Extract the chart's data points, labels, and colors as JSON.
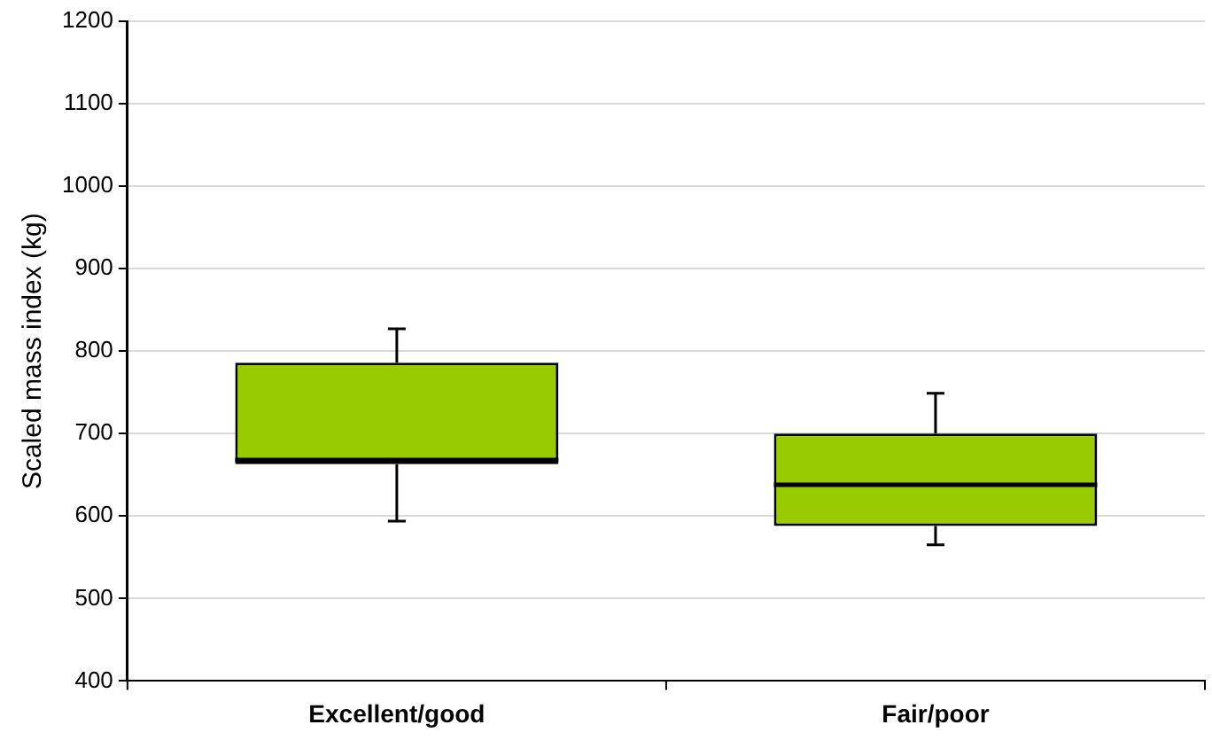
{
  "chart_data": {
    "type": "box",
    "ylabel": "Scaled mass index (kg)",
    "categories": [
      "Excellent/good",
      "Fair/poor"
    ],
    "color": "#99cc00",
    "boxes": [
      {
        "low": 594,
        "q1": 663,
        "median": 668,
        "q3": 786,
        "high": 827
      },
      {
        "low": 565,
        "q1": 588,
        "median": 638,
        "q3": 700,
        "high": 749
      }
    ],
    "ylim": [
      400,
      1200
    ],
    "yticks": [
      400,
      500,
      600,
      700,
      800,
      900,
      1000,
      1100,
      1200
    ],
    "grid": "y",
    "legend": false
  }
}
